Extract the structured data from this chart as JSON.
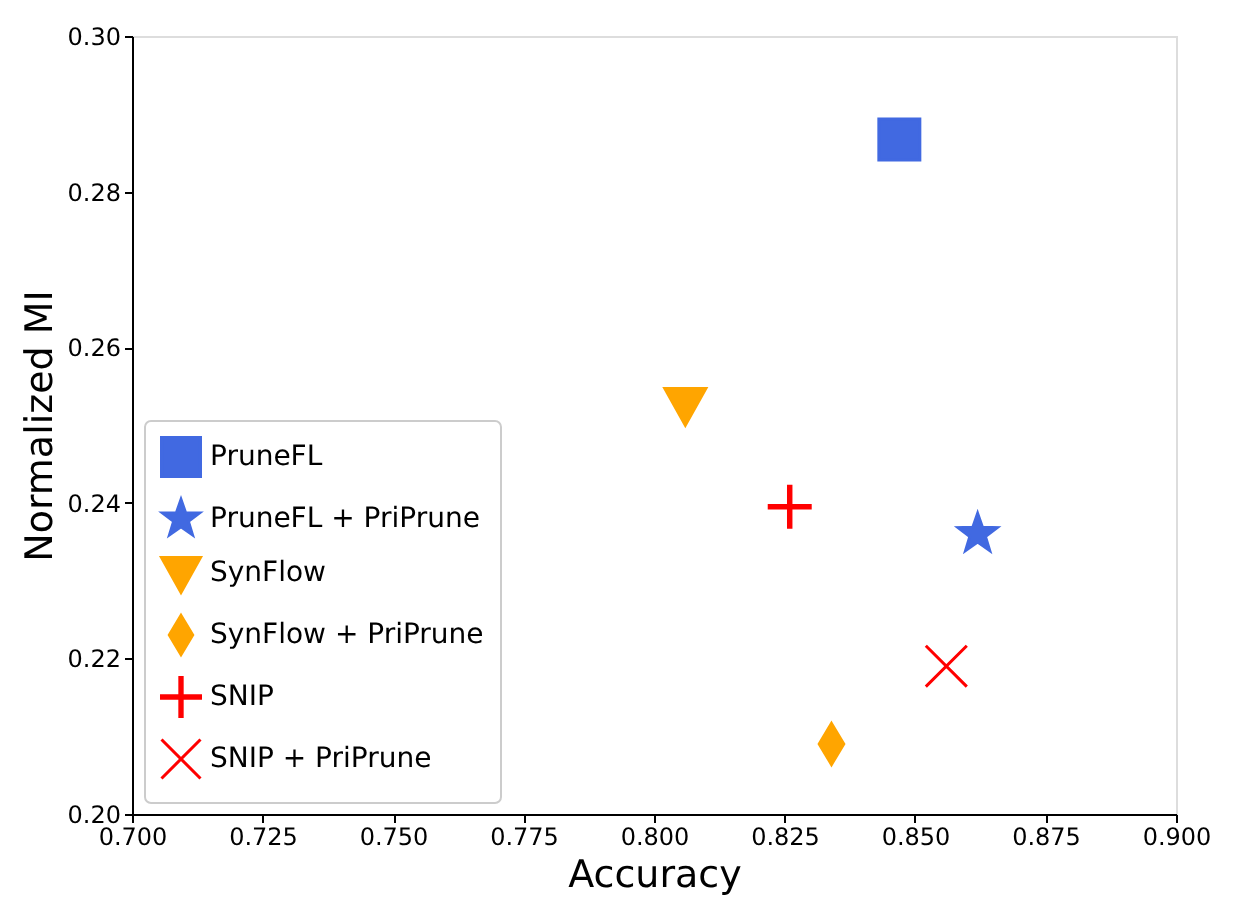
{
  "chart_data": {
    "type": "scatter",
    "xlabel": "Accuracy",
    "ylabel": "Normalized MI",
    "series": [
      {
        "name": "PruneFL",
        "color": "#4169e1",
        "marker": "square",
        "x": [
          0.847
        ],
        "values": [
          0.2867
        ]
      },
      {
        "name": "PruneFL + PriPrune",
        "color": "#4169e1",
        "marker": "star",
        "x": [
          0.862
        ],
        "values": [
          0.236
        ]
      },
      {
        "name": "SynFlow",
        "color": "#ffa500",
        "marker": "triangle",
        "x": [
          0.806
        ],
        "values": [
          0.2526
        ]
      },
      {
        "name": "SynFlow + PriPrune",
        "color": "#ffa500",
        "marker": "diamond",
        "x": [
          0.834
        ],
        "values": [
          0.209
        ]
      },
      {
        "name": "SNIP",
        "color": "#ff0000",
        "marker": "cross",
        "x": [
          0.826
        ],
        "values": [
          0.2395
        ]
      },
      {
        "name": "SNIP + PriPrune",
        "color": "#ff0000",
        "marker": "x",
        "x": [
          0.856
        ],
        "values": [
          0.219
        ]
      }
    ],
    "xlim": [
      0.7,
      0.9
    ],
    "xticks": [
      {
        "value": 0.7,
        "label": "0.700"
      },
      {
        "value": 0.725,
        "label": "0.725"
      },
      {
        "value": 0.75,
        "label": "0.750"
      },
      {
        "value": 0.775,
        "label": "0.775"
      },
      {
        "value": 0.8,
        "label": "0.800"
      },
      {
        "value": 0.825,
        "label": "0.825"
      },
      {
        "value": 0.85,
        "label": "0.850"
      },
      {
        "value": 0.875,
        "label": "0.875"
      },
      {
        "value": 0.9,
        "label": "0.900"
      }
    ],
    "ylim": [
      0.2,
      0.3
    ],
    "yticks": [
      {
        "value": 0.2,
        "label": "0.20"
      },
      {
        "value": 0.22,
        "label": "0.22"
      },
      {
        "value": 0.24,
        "label": "0.24"
      },
      {
        "value": 0.26,
        "label": "0.26"
      },
      {
        "value": 0.28,
        "label": "0.28"
      },
      {
        "value": 0.3,
        "label": "0.30"
      }
    ],
    "grid": false,
    "legend": "bottom left"
  }
}
